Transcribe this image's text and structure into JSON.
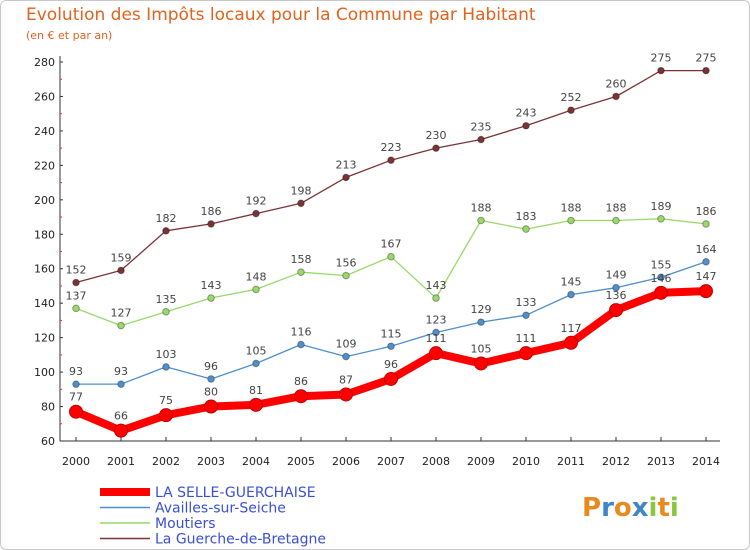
{
  "chart_data": {
    "type": "line",
    "title": "Evolution des Impôts locaux pour la Commune par Habitant",
    "subtitle": "(en € et par an)",
    "x": [
      "2000",
      "2001",
      "2002",
      "2003",
      "2004",
      "2005",
      "2006",
      "2007",
      "2008",
      "2009",
      "2010",
      "2011",
      "2012",
      "2013",
      "2014"
    ],
    "ylim": [
      60,
      280
    ],
    "yticks": [
      60,
      80,
      100,
      120,
      140,
      160,
      180,
      200,
      220,
      240,
      260,
      280
    ],
    "grid": false,
    "legend_placement": "bottom-left",
    "series": [
      {
        "name": "LA SELLE-GUERCHAISE",
        "color": "#ff0000",
        "values": [
          77,
          66,
          75,
          80,
          81,
          86,
          87,
          96,
          111,
          105,
          111,
          117,
          136,
          146,
          147
        ]
      },
      {
        "name": "Availles-sur-Seiche",
        "color": "#4f8fcc",
        "values": [
          93,
          93,
          103,
          96,
          105,
          116,
          109,
          115,
          123,
          129,
          133,
          145,
          149,
          155,
          164
        ]
      },
      {
        "name": "Moutiers",
        "color": "#99d96a",
        "values": [
          137,
          127,
          135,
          143,
          148,
          158,
          156,
          167,
          143,
          188,
          183,
          188,
          188,
          189,
          186
        ]
      },
      {
        "name": "La Guerche-de-Bretagne",
        "color": "#7a3436",
        "values": [
          152,
          159,
          182,
          186,
          192,
          198,
          213,
          223,
          230,
          235,
          243,
          252,
          260,
          275,
          275
        ]
      }
    ]
  },
  "logo": {
    "text": "Proxiti",
    "letters": [
      "P",
      "r",
      "o",
      "x",
      "i",
      "t",
      "i"
    ],
    "colors": [
      "#e88a1e",
      "#3d87c9",
      "#e88a1e",
      "#3d87c9",
      "#8cc63f",
      "#e88a1e",
      "#8cc63f"
    ]
  }
}
